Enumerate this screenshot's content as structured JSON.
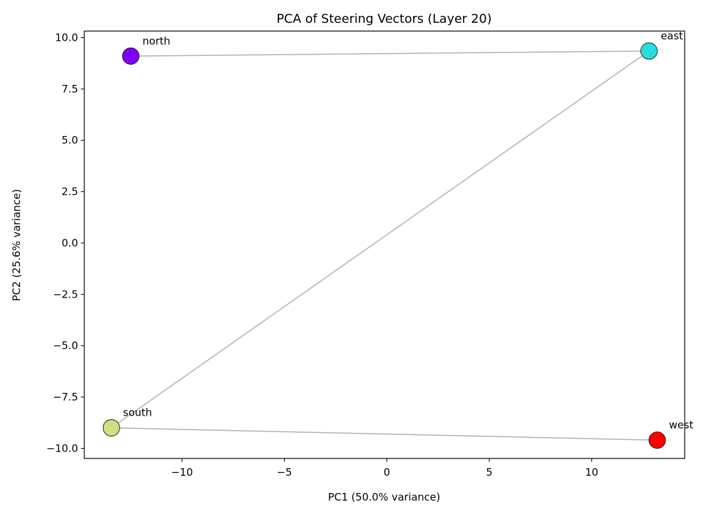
{
  "chart_data": {
    "type": "scatter",
    "title": "PCA of Steering Vectors (Layer 20)",
    "xlabel": "PC1 (50.0% variance)",
    "ylabel": "PC2 (25.6% variance)",
    "xlim": [
      -14.77,
      14.54
    ],
    "ylim": [
      -10.49,
      10.32
    ],
    "xticks": [
      -10,
      -5,
      0,
      5,
      10
    ],
    "xtick_labels": [
      "−10",
      "−5",
      "0",
      "5",
      "10"
    ],
    "yticks": [
      10,
      7.5,
      5,
      2.5,
      0,
      -2.5,
      -5,
      -7.5,
      -10
    ],
    "ytick_labels": [
      "10.0",
      "7.5",
      "5.0",
      "2.5",
      "0.0",
      "−2.5",
      "−5.0",
      "−7.5",
      "−10.0"
    ],
    "grid": false,
    "connecting_line_color": "#b0b0b0",
    "points": [
      {
        "label": "north",
        "x": -12.5,
        "y": 9.1,
        "color": "#8000ff"
      },
      {
        "label": "east",
        "x": 12.8,
        "y": 9.35,
        "color": "#2adddd"
      },
      {
        "label": "south",
        "x": -13.45,
        "y": -9.0,
        "color": "#d4dd80"
      },
      {
        "label": "west",
        "x": 13.2,
        "y": -9.6,
        "color": "#ff0000"
      }
    ]
  }
}
